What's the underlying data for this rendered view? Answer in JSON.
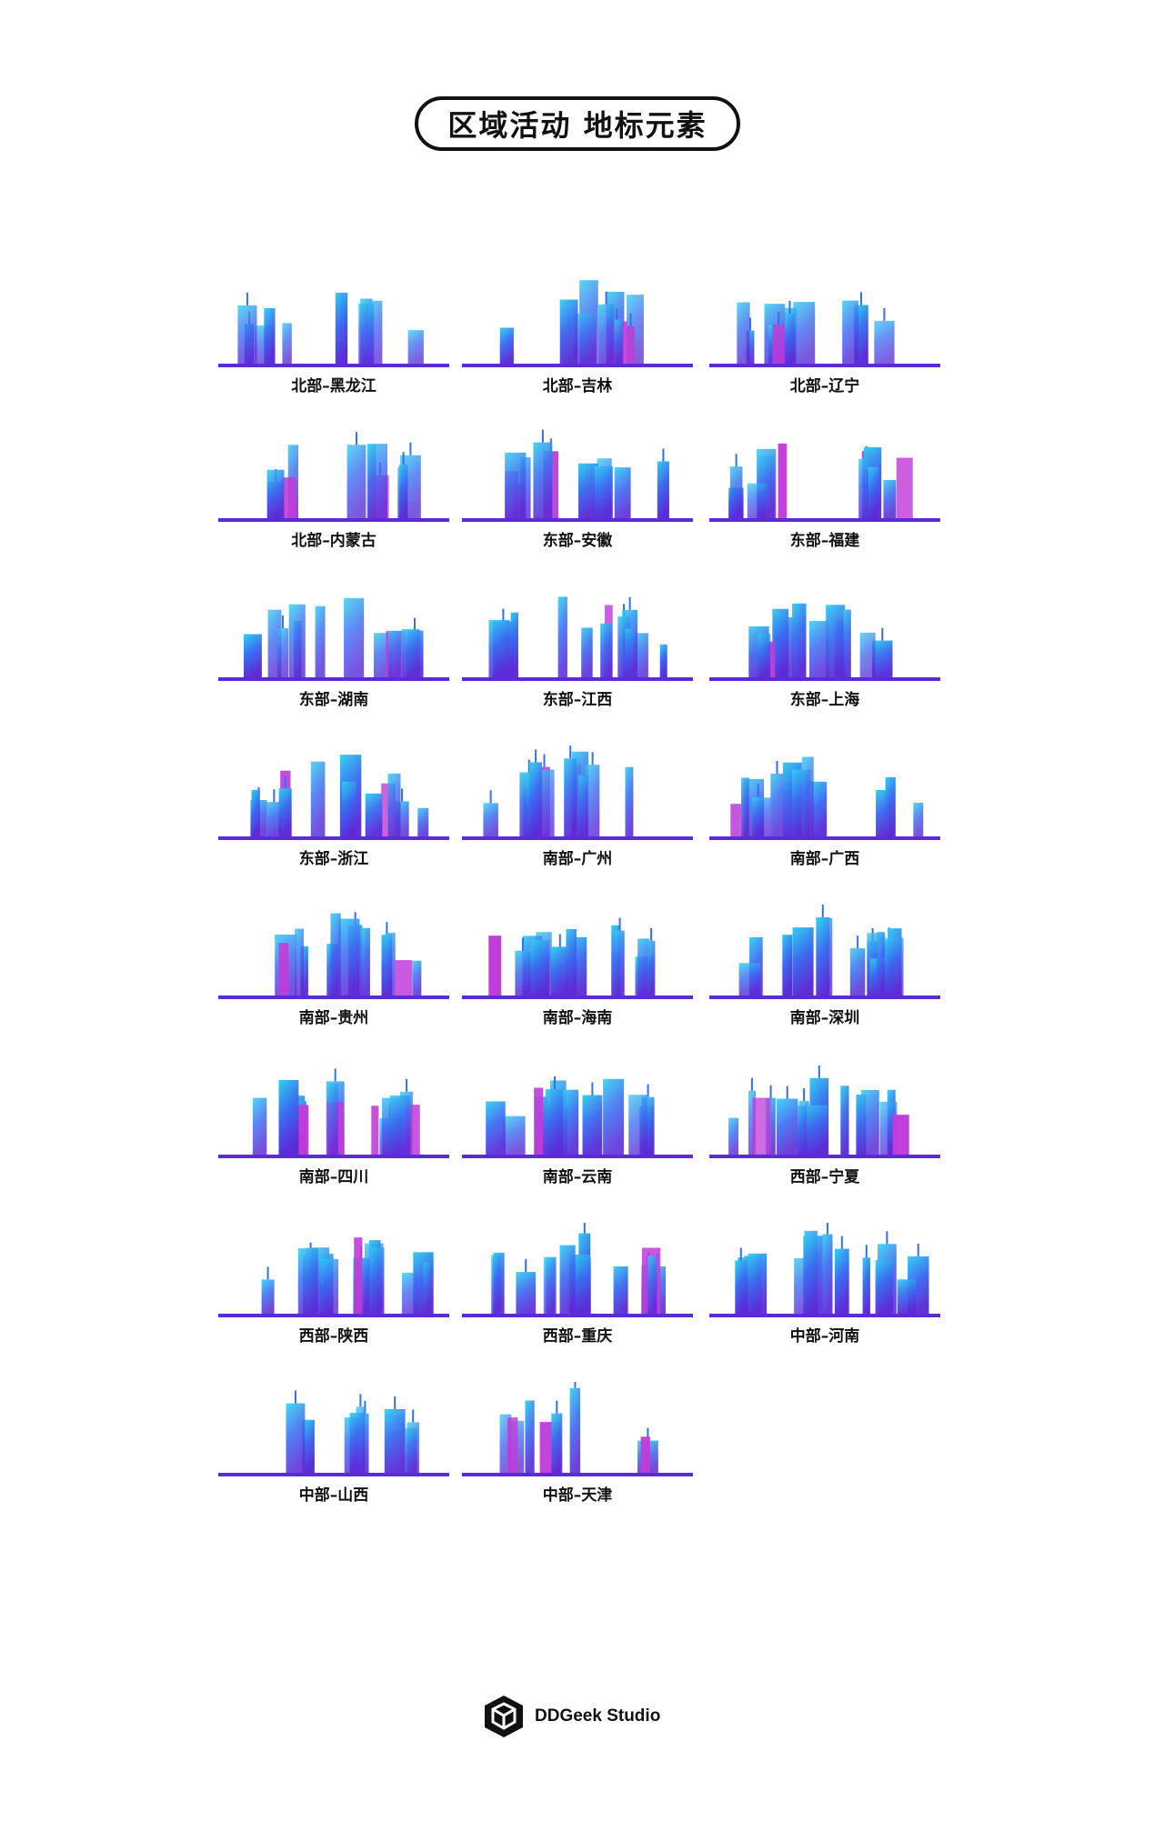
{
  "header": {
    "title": "区域活动 地标元素"
  },
  "landmarks": [
    {
      "label": "北部–黑龙江"
    },
    {
      "label": "北部–吉林"
    },
    {
      "label": "北部–辽宁"
    },
    {
      "label": "北部–内蒙古"
    },
    {
      "label": "东部–安徽"
    },
    {
      "label": "东部–福建"
    },
    {
      "label": "东部–湖南"
    },
    {
      "label": "东部–江西"
    },
    {
      "label": "东部–上海"
    },
    {
      "label": "东部–浙江"
    },
    {
      "label": "南部–广州"
    },
    {
      "label": "南部–广西"
    },
    {
      "label": "南部–贵州"
    },
    {
      "label": "南部–海南"
    },
    {
      "label": "南部–深圳"
    },
    {
      "label": "南部–四川"
    },
    {
      "label": "南部–云南"
    },
    {
      "label": "西部–宁夏"
    },
    {
      "label": "西部–陕西"
    },
    {
      "label": "西部–重庆"
    },
    {
      "label": "中部–河南"
    },
    {
      "label": "中部–山西"
    },
    {
      "label": "中部–天津"
    }
  ],
  "footer": {
    "brand": "DDGeek Studio",
    "logo_icon": "cube-hexagon-icon"
  },
  "colors": {
    "gradient_top": "#2fd0f0",
    "gradient_mid": "#3a6cf0",
    "gradient_bottom": "#5b2bd8",
    "accent_magenta": "#c03cd8"
  }
}
